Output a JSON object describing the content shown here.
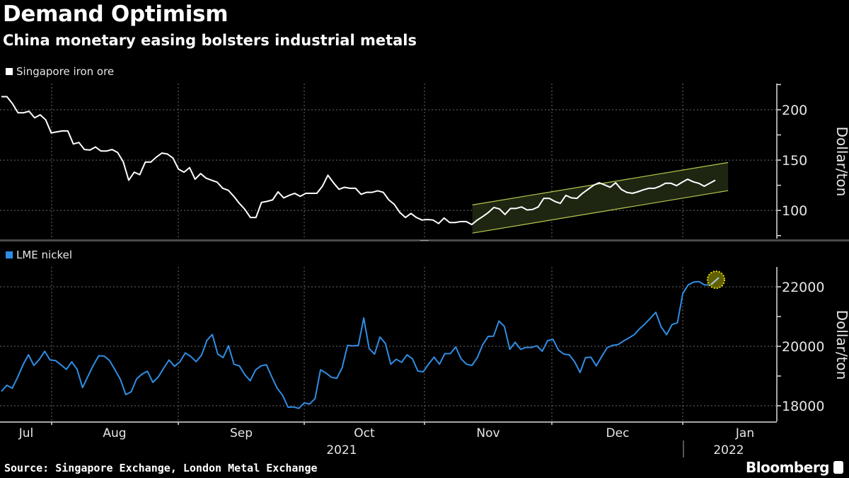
{
  "header": {
    "title": "Demand Optimism",
    "subtitle": "China monetary easing bolsters industrial metals"
  },
  "footer": {
    "source": "Source: Singapore Exchange, London Metal Exchange",
    "logo": "Bloomberg"
  },
  "colors": {
    "background": "#000000",
    "iron_ore": "#ffffff",
    "nickel": "#2f8de4",
    "channel_line": "#b8cc4c",
    "channel_fill": "#1e2612",
    "highlight": "#e8e000",
    "grid": "#6a6a6a"
  },
  "chart_data": [
    {
      "type": "line",
      "legend": "Singapore iron ore",
      "legend_position": "top-left",
      "ylabel": "Dollar/ton",
      "ylim": [
        72,
        226
      ],
      "yticks": [
        100,
        150,
        200
      ],
      "grid": true,
      "series": [
        {
          "name": "Singapore iron ore",
          "values": [
            213,
            213,
            206,
            197,
            197,
            198.5,
            192,
            195,
            190,
            177,
            178,
            179,
            179,
            166,
            167.5,
            160.5,
            160,
            163,
            159,
            159,
            160.5,
            157.5,
            148.5,
            130,
            138,
            135.5,
            148,
            148,
            153,
            157,
            156,
            152,
            141,
            138,
            142.5,
            131,
            136.6,
            132,
            130,
            128,
            122,
            120,
            114,
            107,
            101,
            93,
            93,
            108,
            109,
            110.5,
            118.5,
            112.5,
            115,
            117,
            114,
            117,
            117,
            117,
            124,
            135,
            127.5,
            121,
            123,
            122,
            122,
            116,
            118,
            118,
            119.5,
            118,
            110.5,
            106,
            98,
            93,
            97,
            93,
            90.5,
            91,
            90.5,
            87,
            92.5,
            88,
            88,
            89,
            89,
            86,
            90.5,
            94,
            98,
            103,
            101.5,
            96,
            102,
            102,
            103.5,
            100.5,
            101,
            103.5,
            112,
            112,
            109,
            107,
            115,
            112.5,
            112,
            117,
            121,
            125,
            127.5,
            125.4,
            123,
            127.5,
            121,
            118,
            117,
            118.5,
            120.5,
            122,
            122,
            124,
            127,
            127,
            124.6,
            128,
            131,
            128.5,
            127,
            124,
            127,
            130
          ]
        }
      ],
      "annotation": {
        "type": "trend-channel",
        "start": "2021-11-11",
        "end": "2022-01-12",
        "upper": [
          105.5,
          147.6
        ],
        "lower": [
          77.5,
          119.7
        ]
      }
    },
    {
      "type": "line",
      "legend": "LME nickel",
      "legend_position": "top-left",
      "ylabel": "Dollar/ton",
      "ylim": [
        17476,
        22667
      ],
      "yticks": [
        18000,
        20000,
        22000
      ],
      "grid": true,
      "series": [
        {
          "name": "LME nickel",
          "values": [
            18483,
            18690,
            18588,
            18960,
            19380,
            19714,
            19357,
            19555,
            19833,
            19540,
            19520,
            19380,
            19222,
            19476,
            19222,
            18612,
            18990,
            19366,
            19683,
            19670,
            19520,
            19207,
            18888,
            18374,
            18469,
            18905,
            19064,
            19160,
            18786,
            18969,
            19262,
            19540,
            19326,
            19476,
            19778,
            19659,
            19484,
            19698,
            20198,
            20397,
            19738,
            19619,
            20016,
            19397,
            19341,
            19048,
            18840,
            19207,
            19341,
            19380,
            18969,
            18588,
            18350,
            17952,
            17960,
            17912,
            18095,
            18060,
            18245,
            19207,
            19103,
            18960,
            18920,
            19278,
            20031,
            20016,
            20030,
            20952,
            19921,
            19738,
            20310,
            20095,
            19397,
            19564,
            19460,
            19714,
            19579,
            19167,
            19143,
            19405,
            19635,
            19397,
            19754,
            19754,
            19976,
            19579,
            19397,
            19357,
            19619,
            20056,
            20333,
            20340,
            20850,
            20667,
            19897,
            20135,
            19897,
            19960,
            19960,
            20016,
            19833,
            20190,
            20230,
            19873,
            19738,
            19714,
            19476,
            19119,
            19619,
            19635,
            19341,
            19659,
            19952,
            20031,
            20056,
            20175,
            20278,
            20389,
            20588,
            20754,
            20945,
            21143,
            20650,
            20389,
            20730,
            20794,
            21778,
            22064,
            22159,
            22175,
            22064,
            22064,
            22214
          ]
        }
      ],
      "annotation": {
        "type": "highlight-last-point"
      }
    }
  ],
  "x_axis": {
    "months": [
      "Jul",
      "Aug",
      "Sep",
      "Oct",
      "Nov",
      "Dec",
      "Jan"
    ],
    "years": [
      "2021",
      "2022"
    ]
  }
}
